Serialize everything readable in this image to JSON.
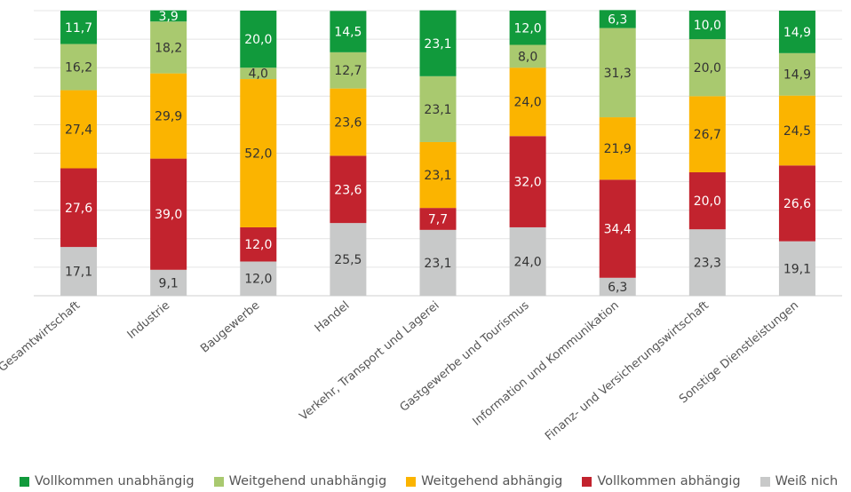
{
  "chart_data": {
    "type": "bar",
    "stacked": true,
    "categories": [
      "Gesamtwirtschaft",
      "Industrie",
      "Baugewerbe",
      "Handel",
      "Verkehr, Transport und Lagerei",
      "Gastgewerbe und Tourismus",
      "Information und Kommunikation",
      "Finanz- und Versicherungswirtschaft",
      "Sonstige Dienstleistungen"
    ],
    "series": [
      {
        "name": "Weiß nicht",
        "color": "#c8c9c9",
        "values": [
          17.1,
          9.1,
          12.0,
          25.5,
          23.1,
          24.0,
          6.3,
          23.3,
          19.1
        ],
        "labels": [
          "17,1",
          "9,1",
          "12,0",
          "25,5",
          "23,1",
          "24,0",
          "6,3",
          "23,3",
          "19,1"
        ]
      },
      {
        "name": "Vollkommen abhängig",
        "color": "#c2232e",
        "values": [
          27.6,
          39.0,
          12.0,
          23.6,
          7.7,
          32.0,
          34.4,
          20.0,
          26.6
        ],
        "labels": [
          "27,6",
          "39,0",
          "12,0",
          "23,6",
          "7,7",
          "32,0",
          "34,4",
          "20,0",
          "26,6"
        ]
      },
      {
        "name": "Weitgehend abhängig",
        "color": "#fbb400",
        "values": [
          27.4,
          29.9,
          52.0,
          23.6,
          23.1,
          24.0,
          21.9,
          26.7,
          24.5
        ],
        "labels": [
          "27,4",
          "29,9",
          "52,0",
          "23,6",
          "23,1",
          "24,0",
          "21,9",
          "26,7",
          "24,5"
        ]
      },
      {
        "name": "Weitgehend unabhängig",
        "color": "#a9c96f",
        "values": [
          16.2,
          18.2,
          4.0,
          12.7,
          23.1,
          8.0,
          31.3,
          20.0,
          14.9
        ],
        "labels": [
          "16,2",
          "18,2",
          "4,0",
          "12,7",
          "23,1",
          "8,0",
          "31,3",
          "20,0",
          "14,9"
        ]
      },
      {
        "name": "Vollkommen unabhängig",
        "color": "#119a3c",
        "values": [
          11.7,
          3.9,
          20.0,
          14.5,
          23.1,
          12.0,
          6.3,
          10.0,
          14.9
        ],
        "labels": [
          "11,7",
          "3,9",
          "20,0",
          "14,5",
          "23,1",
          "12,0",
          "6,3",
          "10,0",
          "14,9"
        ]
      }
    ],
    "ylim": [
      0,
      100
    ],
    "grid": true,
    "legend_position": "bottom"
  },
  "legend": {
    "items": [
      {
        "label": "Vollkommen unabhängig",
        "color": "#119a3c"
      },
      {
        "label": "Weitgehend unabhängig",
        "color": "#a9c96f"
      },
      {
        "label": "Weitgehend abhängig",
        "color": "#fbb400"
      },
      {
        "label": "Vollkommen abhängig",
        "color": "#c2232e"
      },
      {
        "label": "Weiß nich",
        "color": "#c8c9c9"
      }
    ]
  }
}
